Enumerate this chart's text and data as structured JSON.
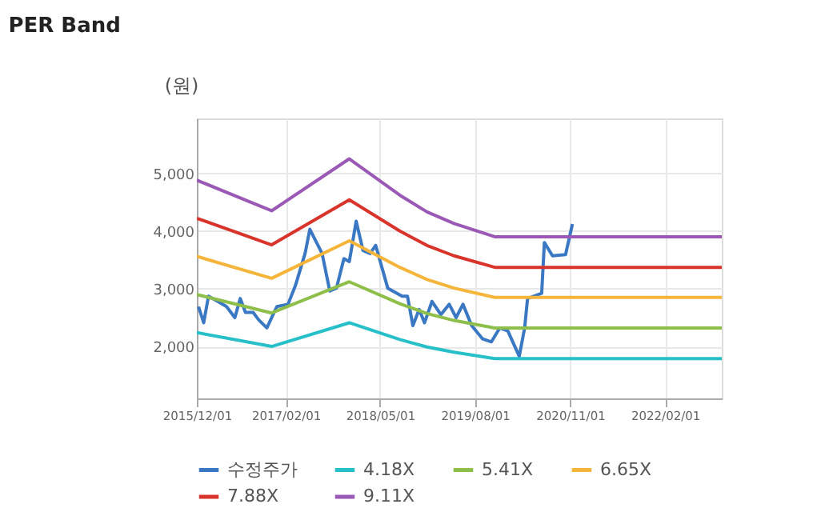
{
  "chart_data": {
    "type": "line",
    "title": "PER Band",
    "ylabel": "(원)",
    "x": [
      "2015-12-01",
      "2016-11-25",
      "2017-12-04",
      "2018-08-04",
      "2018-12-13",
      "2019-04-22",
      "2019-11-04",
      "2022-11-01"
    ],
    "series": [
      {
        "name": "수정주가",
        "color": "#3a78c3",
        "x": [
          "2015-12-09",
          "2016-01-03",
          "2016-01-26",
          "2016-03-11",
          "2016-04-22",
          "2016-06-01",
          "2016-06-27",
          "2016-07-22",
          "2016-08-28",
          "2016-09-24",
          "2016-11-02",
          "2016-12-20",
          "2017-02-12",
          "2017-03-20",
          "2017-05-05",
          "2017-05-28",
          "2017-07-26",
          "2017-09-01",
          "2017-10-03",
          "2017-11-08",
          "2017-12-04",
          "2018-01-06",
          "2018-02-08",
          "2018-03-14",
          "2018-04-10",
          "2018-06-07",
          "2018-08-15",
          "2018-09-10",
          "2018-10-06",
          "2018-11-05",
          "2018-12-01",
          "2019-01-06",
          "2019-02-18",
          "2019-03-30",
          "2019-05-02",
          "2019-06-04",
          "2019-07-16",
          "2019-09-07",
          "2019-10-19",
          "2019-11-28",
          "2020-01-06",
          "2020-03-01",
          "2020-03-27",
          "2020-04-10",
          "2020-06-17",
          "2020-06-30",
          "2020-08-08",
          "2020-10-10",
          "2020-11-12"
        ],
        "values": [
          2690,
          2410,
          2870,
          2780,
          2690,
          2500,
          2830,
          2590,
          2590,
          2460,
          2320,
          2690,
          2730,
          3060,
          3610,
          4030,
          3610,
          2960,
          3010,
          3520,
          3470,
          4170,
          3660,
          3610,
          3750,
          3010,
          2870,
          2870,
          2360,
          2640,
          2410,
          2780,
          2550,
          2730,
          2500,
          2730,
          2360,
          2130,
          2080,
          2320,
          2270,
          1830,
          2320,
          2830,
          2920,
          3800,
          3570,
          3590,
          4120
        ]
      },
      {
        "name": "4.18X",
        "color": "#27c0c9",
        "values": [
          2240,
          2000,
          2410,
          2120,
          1990,
          1900,
          1790,
          1790
        ]
      },
      {
        "name": "5.41X",
        "color": "#8dbf4a",
        "values": [
          2900,
          2580,
          3120,
          2740,
          2570,
          2450,
          2320,
          2320
        ]
      },
      {
        "name": "6.65X",
        "color": "#f5b53a",
        "values": [
          3560,
          3180,
          3830,
          3370,
          3160,
          3010,
          2850,
          2850
        ]
      },
      {
        "name": "7.88X",
        "color": "#d9342b",
        "values": [
          4220,
          3760,
          4540,
          4000,
          3750,
          3570,
          3370,
          3370
        ]
      },
      {
        "name": "9.11X",
        "color": "#9b59b6",
        "values": [
          4880,
          4350,
          5250,
          4620,
          4330,
          4130,
          3900,
          3900
        ]
      }
    ],
    "xlim": [
      "2015-12-01",
      "2022-11-01"
    ],
    "xticks": [
      {
        "value": "2015-12-01",
        "label": "2015/12/01"
      },
      {
        "value": "2017-02-01",
        "label": "2017/02/01"
      },
      {
        "value": "2018-05-01",
        "label": "2018/05/01"
      },
      {
        "value": "2019-08-01",
        "label": "2019/08/01"
      },
      {
        "value": "2020-11-01",
        "label": "2020/11/01"
      },
      {
        "value": "2022-02-01",
        "label": "2022/02/01"
      }
    ],
    "ylim": [
      1100,
      5950
    ],
    "yticks": [
      {
        "value": 2000,
        "label": "2,000"
      },
      {
        "value": 3000,
        "label": "3,000"
      },
      {
        "value": 4000,
        "label": "4,000"
      },
      {
        "value": 5000,
        "label": "5,000"
      }
    ],
    "grid": true,
    "legend": "bottom",
    "marker": "none",
    "line_style": "solid"
  }
}
